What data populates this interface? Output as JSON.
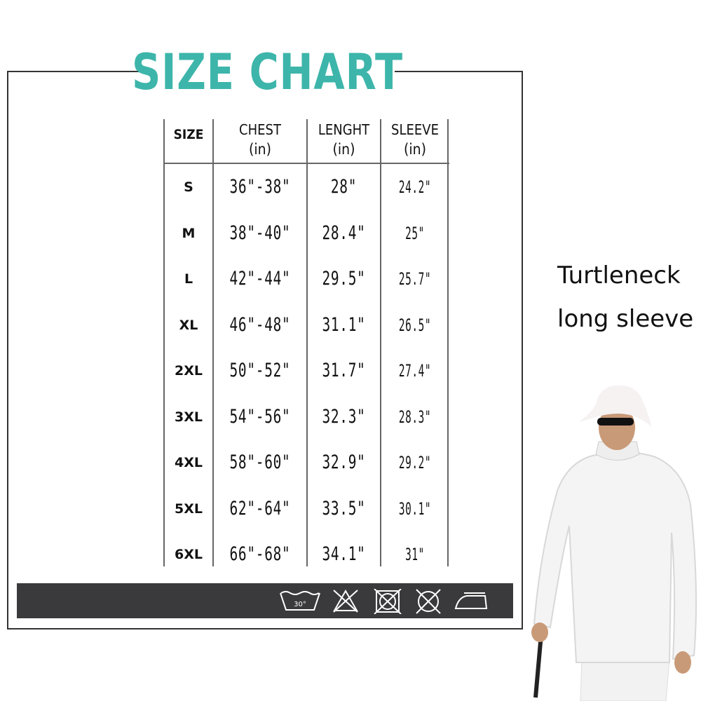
{
  "title": "SIZE CHART",
  "colors": {
    "title": "#3db5aa",
    "care_bar": "#3a3a3c"
  },
  "table": {
    "headers": [
      {
        "label": "SIZE",
        "unit": ""
      },
      {
        "label": "CHEST",
        "unit": "(in)"
      },
      {
        "label": "LENGHT",
        "unit": "(in)"
      },
      {
        "label": "SLEEVE",
        "unit": "(in)"
      }
    ],
    "rows": [
      {
        "size": "S",
        "chest": "36\"-38\"",
        "length": "28\"",
        "sleeve": "24.2\""
      },
      {
        "size": "M",
        "chest": "38\"-40\"",
        "length": "28.4\"",
        "sleeve": "25\""
      },
      {
        "size": "L",
        "chest": "42\"-44\"",
        "length": "29.5\"",
        "sleeve": "25.7\""
      },
      {
        "size": "XL",
        "chest": "46\"-48\"",
        "length": "31.1\"",
        "sleeve": "26.5\""
      },
      {
        "size": "2XL",
        "chest": "50\"-52\"",
        "length": "31.7\"",
        "sleeve": "27.4\""
      },
      {
        "size": "3XL",
        "chest": "54\"-56\"",
        "length": "32.3\"",
        "sleeve": "28.3\""
      },
      {
        "size": "4XL",
        "chest": "58\"-60\"",
        "length": "32.9\"",
        "sleeve": "29.2\""
      },
      {
        "size": "5XL",
        "chest": "62\"-64\"",
        "length": "33.5\"",
        "sleeve": "30.1\""
      },
      {
        "size": "6XL",
        "chest": "66\"-68\"",
        "length": "34.1\"",
        "sleeve": "31\""
      }
    ]
  },
  "care_icons": [
    {
      "icon": "wash-30-icon",
      "label": "30°"
    },
    {
      "icon": "no-bleach-icon"
    },
    {
      "icon": "no-tumble-dry-icon"
    },
    {
      "icon": "no-dry-clean-icon"
    },
    {
      "icon": "iron-icon"
    }
  ],
  "product": {
    "line1": "Turtleneck",
    "line2": "long sleeve"
  }
}
